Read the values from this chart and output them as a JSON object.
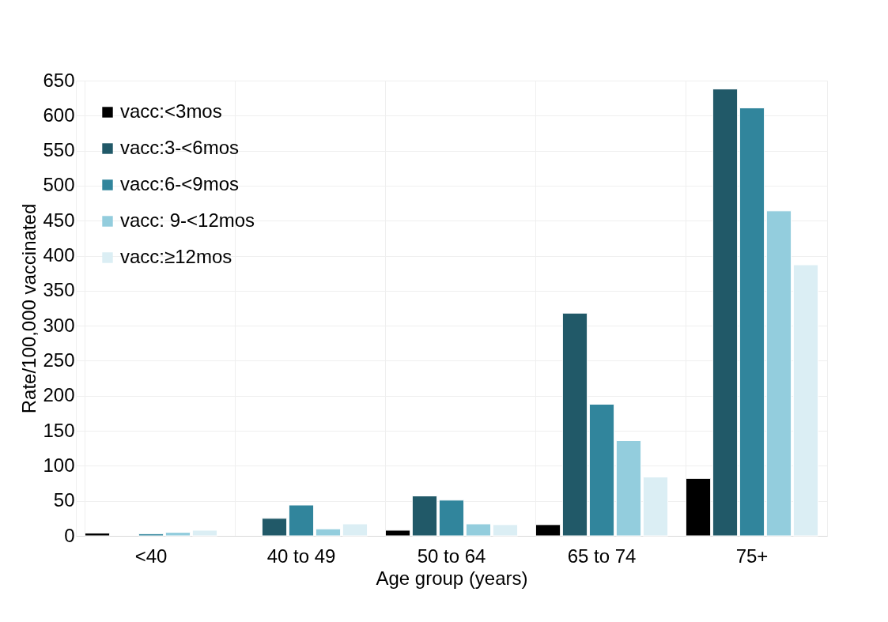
{
  "chart_data": {
    "type": "bar",
    "xlabel": "Age group (years)",
    "ylabel": "Rate/100,000 vaccinated",
    "categories": [
      "<40",
      "40 to 49",
      "50 to 64",
      "65 to 74",
      "75+"
    ],
    "series": [
      {
        "name": "vacc:<3mos",
        "color": "#000000",
        "values": [
          4,
          null,
          8,
          16,
          82
        ]
      },
      {
        "name": "vacc:3-<6mos",
        "color": "#215968",
        "values": [
          null,
          25,
          57,
          318,
          638
        ]
      },
      {
        "name": "vacc:6-<9mos",
        "color": "#31859c",
        "values": [
          3,
          44,
          51,
          188,
          611
        ]
      },
      {
        "name": "vacc: 9-<12mos",
        "color": "#93cddd",
        "values": [
          5,
          10,
          17,
          136,
          464
        ]
      },
      {
        "name": "vacc:≥12mos",
        "color": "#dbeef4",
        "values": [
          8,
          17,
          16,
          84,
          387
        ]
      }
    ],
    "ylim": [
      0,
      650
    ],
    "yticks": [
      0,
      50,
      100,
      150,
      200,
      250,
      300,
      350,
      400,
      450,
      500,
      550,
      600,
      650
    ],
    "grid": true,
    "legend": "top left"
  }
}
